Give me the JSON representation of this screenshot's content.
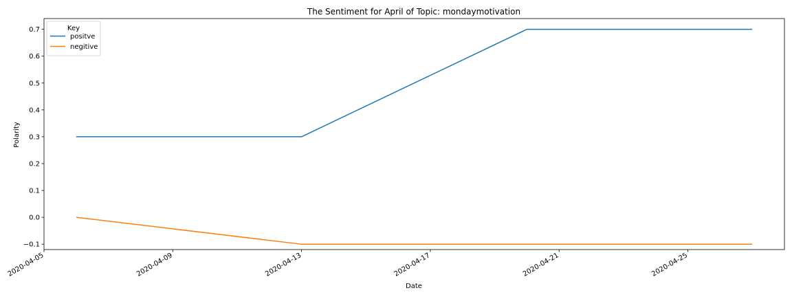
{
  "chart_data": {
    "type": "line",
    "title": "The Sentiment for April of Topic: mondaymotivation",
    "xlabel": "Date",
    "ylabel": "Polarity",
    "x": [
      "2020-04-06",
      "2020-04-13",
      "2020-04-20",
      "2020-04-27"
    ],
    "series": [
      {
        "name": "positve",
        "values": [
          0.3,
          0.3,
          0.7,
          0.7
        ],
        "color": "#1f77b4"
      },
      {
        "name": "negitive",
        "values": [
          0.0,
          -0.1,
          -0.1,
          -0.1
        ],
        "color": "#ff7f0e"
      }
    ],
    "xlim": [
      "2020-04-05",
      "2020-04-28"
    ],
    "ylim": [
      -0.12,
      0.74
    ],
    "xticks": [
      "2020-04-05",
      "2020-04-09",
      "2020-04-13",
      "2020-04-17",
      "2020-04-21",
      "2020-04-25"
    ],
    "yticks": [
      -0.1,
      0.0,
      0.1,
      0.2,
      0.3,
      0.4,
      0.5,
      0.6,
      0.7
    ],
    "ytick_labels": [
      "−0.1",
      "0.0",
      "0.1",
      "0.2",
      "0.3",
      "0.4",
      "0.5",
      "0.6",
      "0.7"
    ],
    "legend": {
      "title": "Key",
      "position": "upper-left"
    },
    "grid": false
  }
}
